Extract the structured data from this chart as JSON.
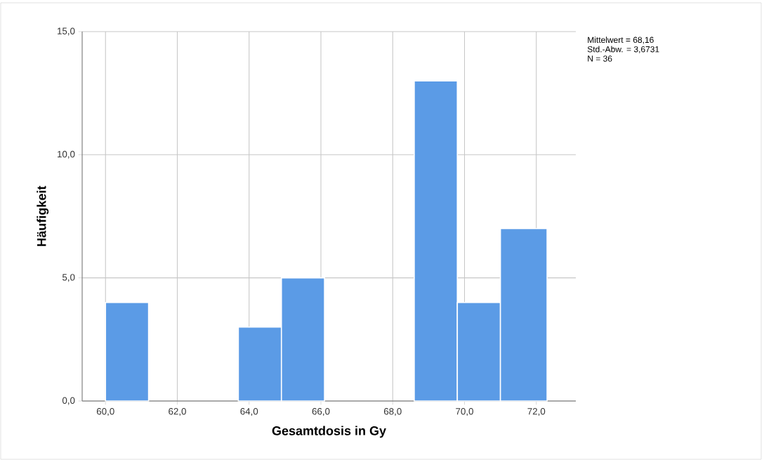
{
  "chart_data": {
    "type": "histogram",
    "xlabel": "Gesamtdosis in Gy",
    "ylabel": "Häufigkeit",
    "bins": [
      60.0,
      61.2,
      63.7,
      64.9,
      66.1,
      68.6,
      69.8,
      71.0,
      72.3
    ],
    "values": [
      4,
      0,
      3,
      5,
      0,
      13,
      4,
      7
    ],
    "color": "#5b9be6",
    "xlim": [
      59.35,
      73.1
    ],
    "ylim": [
      0,
      15
    ],
    "xticks": [
      {
        "value": 60,
        "label": "60,0"
      },
      {
        "value": 62,
        "label": "62,0"
      },
      {
        "value": 64,
        "label": "64,0"
      },
      {
        "value": 66,
        "label": "66,0"
      },
      {
        "value": 68,
        "label": "68,0"
      },
      {
        "value": 70,
        "label": "70,0"
      },
      {
        "value": 72,
        "label": "72,0"
      }
    ],
    "yticks": [
      {
        "value": 0,
        "label": "0,0"
      },
      {
        "value": 5,
        "label": "5,0"
      },
      {
        "value": 10,
        "label": "10,0"
      },
      {
        "value": 15,
        "label": "15,0"
      }
    ],
    "grid": true,
    "annotations": [
      "Mittelwert = 68,16",
      "Std.-Abw. = 3,6731",
      "N = 36"
    ]
  }
}
